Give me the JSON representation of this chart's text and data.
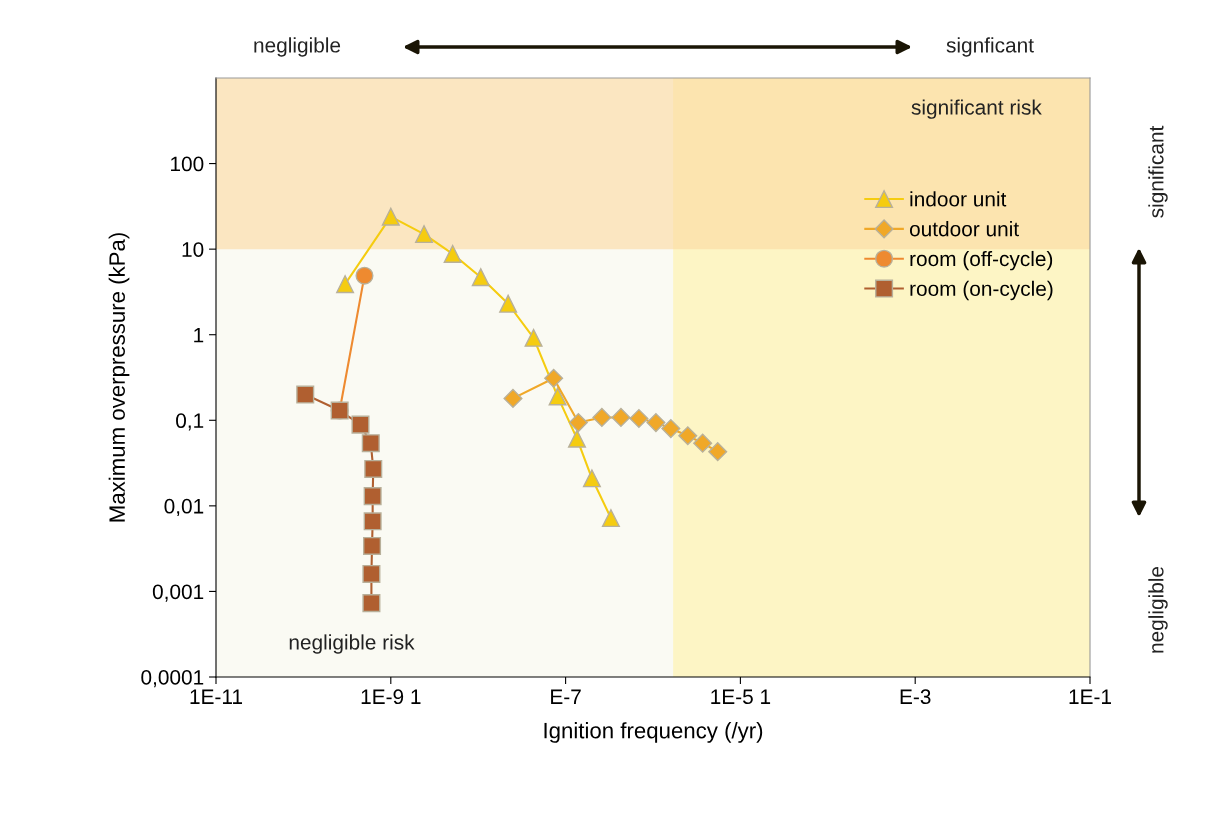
{
  "chart_data": {
    "type": "line",
    "xlabel": "Ignition frequency (/yr)",
    "ylabel": "Maximum overpressure (kPa)",
    "log": "xy",
    "xlim": [
      1e-11,
      0.1
    ],
    "ylim": [
      0.0001,
      1000
    ],
    "xticks": [
      {
        "value": 1e-11,
        "label": "1E-11"
      },
      {
        "value": 1e-09,
        "label": "1E-9 1"
      },
      {
        "value": 1e-07,
        "label": "E-7"
      },
      {
        "value": 1e-05,
        "label": "1E-5 1"
      },
      {
        "value": 0.001,
        "label": "E-3"
      },
      {
        "value": 0.1,
        "label": "1E-1"
      }
    ],
    "yticks": [
      {
        "value": 0.0001,
        "label": "0,0001"
      },
      {
        "value": 0.001,
        "label": "0,001"
      },
      {
        "value": 0.01,
        "label": "0,01"
      },
      {
        "value": 0.1,
        "label": "0,1"
      },
      1,
      10,
      100
    ],
    "grid": false,
    "legend": "right",
    "bands": [
      {
        "axis": "x",
        "from": 1.7e-06,
        "to": 0.1,
        "color": "#fff2a6"
      },
      {
        "axis": "y",
        "from": 10,
        "to": 1000,
        "color": "#fcd9a0"
      }
    ],
    "annotations": [
      "significant risk",
      "negligible risk",
      "negligible",
      "signficant",
      "significant",
      "negligible"
    ],
    "series": [
      {
        "name": "indoor unit",
        "color": "#f5cc10",
        "marker": "triangle",
        "x": [
          3e-10,
          1e-09,
          2.4e-09,
          5.1e-09,
          1.07e-08,
          2.2e-08,
          4.3e-08,
          8.1e-08,
          1.35e-07,
          2e-07,
          3.3e-07
        ],
        "values": [
          3.9,
          24,
          15,
          8.8,
          4.7,
          2.3,
          0.92,
          0.19,
          0.061,
          0.021,
          0.0072
        ]
      },
      {
        "name": "outdoor unit",
        "color": "#f0a828",
        "marker": "diamond",
        "x": [
          2.5e-08,
          7.3e-08,
          1.4e-07,
          2.6e-07,
          4.3e-07,
          6.9e-07,
          1.08e-06,
          1.6e-06,
          2.5e-06,
          3.7e-06,
          5.5e-06
        ],
        "values": [
          0.18,
          0.31,
          0.094,
          0.108,
          0.108,
          0.105,
          0.094,
          0.08,
          0.066,
          0.054,
          0.043
        ]
      },
      {
        "name": "room (off-cycle)",
        "color": "#ee8a30",
        "marker": "circle",
        "x": [
          5e-10,
          2.6e-10
        ],
        "values": [
          4.9,
          0.13
        ]
      },
      {
        "name": "room (on-cycle)",
        "color": "#b05f30",
        "marker": "square",
        "x": [
          1.05e-10,
          2.6e-10,
          4.5e-10,
          5.9e-10,
          6.3e-10,
          6.2e-10,
          6.2e-10,
          6.1e-10,
          6e-10,
          6e-10
        ],
        "values": [
          0.2,
          0.13,
          0.089,
          0.054,
          0.027,
          0.013,
          0.0066,
          0.0034,
          0.0016,
          0.00073
        ]
      }
    ]
  }
}
